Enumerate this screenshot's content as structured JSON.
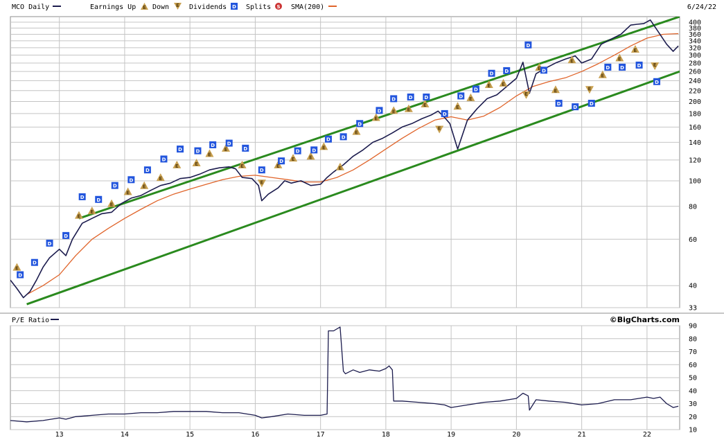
{
  "header": {
    "symbol_label": "MCO Daily",
    "earnings_up_label": "Earnings Up",
    "earnings_down_label": "Down",
    "dividends_label": "Dividends",
    "splits_label": "Splits",
    "sma_label": "SMA(200)",
    "date": "6/24/22",
    "pe_label": "P/E Ratio",
    "brand": "©BigCharts.com"
  },
  "legend_icons": {
    "earnings_up": "E",
    "earnings_down": "E",
    "dividend": "D",
    "split": "S"
  },
  "colors": {
    "price": "#1b1b4d",
    "sma": "#e0642a",
    "channel": "#2a8a1e",
    "earnings": "#c8a050",
    "dividend": "#2255dd",
    "split": "#cc3333",
    "grid": "#c4c4c4"
  },
  "chart_data": [
    {
      "type": "line",
      "title": "MCO Daily",
      "scale": "log",
      "x_range": [
        2012.25,
        2022.5
      ],
      "ylim": [
        33,
        420
      ],
      "y_ticks": [
        33,
        40,
        60,
        80,
        100,
        120,
        140,
        160,
        180,
        200,
        220,
        240,
        260,
        280,
        300,
        320,
        340,
        360,
        380,
        400
      ],
      "x_ticks": [
        "13",
        "14",
        "15",
        "16",
        "17",
        "18",
        "19",
        "20",
        "21",
        "22"
      ],
      "series": [
        {
          "name": "MCO Daily",
          "x": [
            2012.25,
            2012.35,
            2012.45,
            2012.55,
            2012.65,
            2012.75,
            2012.85,
            2013.0,
            2013.1,
            2013.2,
            2013.35,
            2013.5,
            2013.65,
            2013.8,
            2013.95,
            2014.1,
            2014.25,
            2014.4,
            2014.55,
            2014.7,
            2014.85,
            2015.0,
            2015.15,
            2015.3,
            2015.45,
            2015.6,
            2015.7,
            2015.8,
            2015.95,
            2016.05,
            2016.1,
            2016.2,
            2016.35,
            2016.45,
            2016.55,
            2016.7,
            2016.85,
            2017.0,
            2017.1,
            2017.2,
            2017.35,
            2017.5,
            2017.65,
            2017.8,
            2017.95,
            2018.1,
            2018.25,
            2018.4,
            2018.55,
            2018.7,
            2018.8,
            2018.9,
            2018.98,
            2019.1,
            2019.25,
            2019.4,
            2019.55,
            2019.7,
            2019.85,
            2020.0,
            2020.1,
            2020.2,
            2020.3,
            2020.45,
            2020.6,
            2020.75,
            2020.9,
            2021.0,
            2021.15,
            2021.3,
            2021.45,
            2021.6,
            2021.75,
            2021.85,
            2021.95,
            2022.05,
            2022.15,
            2022.3,
            2022.4,
            2022.48
          ],
          "values": [
            42,
            39,
            36,
            38,
            42,
            47,
            51,
            55,
            52,
            60,
            69,
            72,
            75,
            76,
            82,
            86,
            88,
            92,
            96,
            98,
            102,
            103,
            106,
            110,
            112,
            113,
            111,
            103,
            102,
            96,
            84,
            89,
            94,
            100,
            98,
            100,
            96,
            97,
            103,
            108,
            115,
            124,
            131,
            140,
            145,
            152,
            160,
            165,
            172,
            178,
            184,
            174,
            165,
            132,
            170,
            188,
            205,
            212,
            228,
            245,
            282,
            215,
            255,
            268,
            280,
            290,
            298,
            280,
            290,
            330,
            345,
            360,
            390,
            393,
            395,
            408,
            375,
            330,
            310,
            325
          ]
        },
        {
          "name": "SMA(200)",
          "x": [
            2012.5,
            2012.75,
            2013.0,
            2013.25,
            2013.5,
            2013.75,
            2014.0,
            2014.25,
            2014.5,
            2014.75,
            2015.0,
            2015.25,
            2015.5,
            2015.75,
            2016.0,
            2016.25,
            2016.5,
            2016.75,
            2017.0,
            2017.25,
            2017.5,
            2017.75,
            2018.0,
            2018.25,
            2018.5,
            2018.75,
            2019.0,
            2019.25,
            2019.5,
            2019.75,
            2020.0,
            2020.25,
            2020.5,
            2020.75,
            2021.0,
            2021.25,
            2021.5,
            2021.75,
            2022.0,
            2022.25,
            2022.48
          ],
          "values": [
            37,
            40,
            44,
            52,
            60,
            66,
            72,
            78,
            84,
            89,
            93,
            97,
            101,
            104,
            105,
            103,
            101,
            99,
            99,
            103,
            110,
            120,
            132,
            145,
            158,
            170,
            175,
            170,
            176,
            190,
            210,
            228,
            238,
            246,
            260,
            278,
            300,
            325,
            348,
            360,
            362
          ]
        },
        {
          "name": "Upper Channel",
          "x": [
            2013.3,
            2022.5
          ],
          "values": [
            72,
            420
          ]
        },
        {
          "name": "Lower Channel",
          "x": [
            2012.5,
            2022.5
          ],
          "values": [
            34,
            260
          ]
        }
      ],
      "markers": [
        {
          "type": "earnings_up",
          "x": 2012.35,
          "y": 47
        },
        {
          "type": "dividend",
          "x": 2012.4,
          "y": 44
        },
        {
          "type": "dividend",
          "x": 2012.62,
          "y": 49
        },
        {
          "type": "dividend",
          "x": 2012.85,
          "y": 58
        },
        {
          "type": "dividend",
          "x": 2013.1,
          "y": 62
        },
        {
          "type": "earnings_up",
          "x": 2013.3,
          "y": 74
        },
        {
          "type": "dividend",
          "x": 2013.35,
          "y": 87
        },
        {
          "type": "earnings_up",
          "x": 2013.5,
          "y": 77
        },
        {
          "type": "dividend",
          "x": 2013.6,
          "y": 85
        },
        {
          "type": "earnings_up",
          "x": 2013.8,
          "y": 82
        },
        {
          "type": "dividend",
          "x": 2013.85,
          "y": 96
        },
        {
          "type": "earnings_up",
          "x": 2014.05,
          "y": 91
        },
        {
          "type": "dividend",
          "x": 2014.1,
          "y": 101
        },
        {
          "type": "earnings_up",
          "x": 2014.3,
          "y": 96
        },
        {
          "type": "dividend",
          "x": 2014.35,
          "y": 110
        },
        {
          "type": "earnings_up",
          "x": 2014.55,
          "y": 103
        },
        {
          "type": "dividend",
          "x": 2014.6,
          "y": 121
        },
        {
          "type": "earnings_up",
          "x": 2014.8,
          "y": 115
        },
        {
          "type": "dividend",
          "x": 2014.85,
          "y": 132
        },
        {
          "type": "earnings_up",
          "x": 2015.1,
          "y": 117
        },
        {
          "type": "dividend",
          "x": 2015.12,
          "y": 130
        },
        {
          "type": "earnings_up",
          "x": 2015.3,
          "y": 127
        },
        {
          "type": "dividend",
          "x": 2015.35,
          "y": 137
        },
        {
          "type": "earnings_up",
          "x": 2015.55,
          "y": 133
        },
        {
          "type": "dividend",
          "x": 2015.6,
          "y": 139
        },
        {
          "type": "earnings_up",
          "x": 2015.8,
          "y": 115
        },
        {
          "type": "dividend",
          "x": 2015.85,
          "y": 133
        },
        {
          "type": "dividend",
          "x": 2016.1,
          "y": 110
        },
        {
          "type": "earnings_down",
          "x": 2016.1,
          "y": 98
        },
        {
          "type": "earnings_up",
          "x": 2016.35,
          "y": 115
        },
        {
          "type": "dividend",
          "x": 2016.4,
          "y": 119
        },
        {
          "type": "earnings_up",
          "x": 2016.58,
          "y": 122
        },
        {
          "type": "dividend",
          "x": 2016.65,
          "y": 130
        },
        {
          "type": "earnings_up",
          "x": 2016.85,
          "y": 124
        },
        {
          "type": "dividend",
          "x": 2016.9,
          "y": 131
        },
        {
          "type": "earnings_up",
          "x": 2017.05,
          "y": 135
        },
        {
          "type": "dividend",
          "x": 2017.12,
          "y": 144
        },
        {
          "type": "earnings_up",
          "x": 2017.3,
          "y": 113
        },
        {
          "type": "dividend",
          "x": 2017.35,
          "y": 147
        },
        {
          "type": "earnings_up",
          "x": 2017.55,
          "y": 154
        },
        {
          "type": "dividend",
          "x": 2017.6,
          "y": 165
        },
        {
          "type": "earnings_up",
          "x": 2017.85,
          "y": 174
        },
        {
          "type": "dividend",
          "x": 2017.9,
          "y": 185
        },
        {
          "type": "earnings_up",
          "x": 2018.12,
          "y": 185
        },
        {
          "type": "dividend",
          "x": 2018.12,
          "y": 205
        },
        {
          "type": "earnings_up",
          "x": 2018.35,
          "y": 188
        },
        {
          "type": "dividend",
          "x": 2018.38,
          "y": 208
        },
        {
          "type": "earnings_up",
          "x": 2018.6,
          "y": 196
        },
        {
          "type": "dividend",
          "x": 2018.62,
          "y": 208
        },
        {
          "type": "earnings_down",
          "x": 2018.82,
          "y": 157
        },
        {
          "type": "dividend",
          "x": 2018.9,
          "y": 180
        },
        {
          "type": "earnings_up",
          "x": 2019.1,
          "y": 192
        },
        {
          "type": "dividend",
          "x": 2019.15,
          "y": 210
        },
        {
          "type": "earnings_up",
          "x": 2019.3,
          "y": 207
        },
        {
          "type": "dividend",
          "x": 2019.38,
          "y": 223
        },
        {
          "type": "earnings_up",
          "x": 2019.58,
          "y": 232
        },
        {
          "type": "dividend",
          "x": 2019.62,
          "y": 256
        },
        {
          "type": "earnings_up",
          "x": 2019.8,
          "y": 235
        },
        {
          "type": "dividend",
          "x": 2019.85,
          "y": 262
        },
        {
          "type": "earnings_down",
          "x": 2020.15,
          "y": 212
        },
        {
          "type": "dividend",
          "x": 2020.18,
          "y": 328
        },
        {
          "type": "earnings_up",
          "x": 2020.35,
          "y": 270
        },
        {
          "type": "dividend",
          "x": 2020.42,
          "y": 263
        },
        {
          "type": "earnings_up",
          "x": 2020.6,
          "y": 222
        },
        {
          "type": "dividend",
          "x": 2020.65,
          "y": 197
        },
        {
          "type": "earnings_up",
          "x": 2020.85,
          "y": 288
        },
        {
          "type": "dividend",
          "x": 2020.9,
          "y": 191
        },
        {
          "type": "earnings_down",
          "x": 2021.12,
          "y": 222
        },
        {
          "type": "dividend",
          "x": 2021.15,
          "y": 197
        },
        {
          "type": "earnings_up",
          "x": 2021.32,
          "y": 253
        },
        {
          "type": "dividend",
          "x": 2021.4,
          "y": 270
        },
        {
          "type": "earnings_up",
          "x": 2021.58,
          "y": 293
        },
        {
          "type": "dividend",
          "x": 2021.62,
          "y": 270
        },
        {
          "type": "earnings_up",
          "x": 2021.82,
          "y": 316
        },
        {
          "type": "dividend",
          "x": 2021.88,
          "y": 275
        },
        {
          "type": "earnings_down",
          "x": 2022.12,
          "y": 273
        },
        {
          "type": "dividend",
          "x": 2022.15,
          "y": 238
        }
      ]
    },
    {
      "type": "line",
      "title": "P/E Ratio",
      "ylim": [
        10,
        90
      ],
      "y_ticks": [
        10,
        20,
        30,
        40,
        50,
        60,
        70,
        80,
        90
      ],
      "x_ticks": [
        "13",
        "14",
        "15",
        "16",
        "17",
        "18",
        "19",
        "20",
        "21",
        "22"
      ],
      "series": [
        {
          "name": "P/E Ratio",
          "x": [
            2012.25,
            2012.5,
            2012.75,
            2013.0,
            2013.1,
            2013.25,
            2013.5,
            2013.75,
            2014.0,
            2014.25,
            2014.5,
            2014.75,
            2015.0,
            2015.25,
            2015.5,
            2015.75,
            2016.0,
            2016.1,
            2016.25,
            2016.5,
            2016.75,
            2017.0,
            2017.1,
            2017.12,
            2017.2,
            2017.3,
            2017.35,
            2017.38,
            2017.5,
            2017.6,
            2017.75,
            2017.9,
            2018.0,
            2018.05,
            2018.1,
            2018.12,
            2018.25,
            2018.5,
            2018.75,
            2018.9,
            2019.0,
            2019.25,
            2019.5,
            2019.75,
            2020.0,
            2020.1,
            2020.18,
            2020.2,
            2020.3,
            2020.5,
            2020.75,
            2021.0,
            2021.25,
            2021.5,
            2021.75,
            2022.0,
            2022.1,
            2022.2,
            2022.3,
            2022.4,
            2022.48
          ],
          "values": [
            17,
            16,
            17,
            19,
            18,
            20,
            21,
            22,
            22,
            23,
            23,
            24,
            24,
            24,
            23,
            23,
            21,
            19,
            20,
            22,
            21,
            21,
            22,
            86,
            86,
            89,
            55,
            53,
            56,
            54,
            56,
            55,
            57,
            59,
            56,
            32,
            32,
            31,
            30,
            29,
            27,
            29,
            31,
            32,
            34,
            38,
            36,
            25,
            33,
            32,
            31,
            29,
            30,
            33,
            33,
            35,
            34,
            35,
            30,
            27,
            28
          ]
        }
      ]
    }
  ]
}
